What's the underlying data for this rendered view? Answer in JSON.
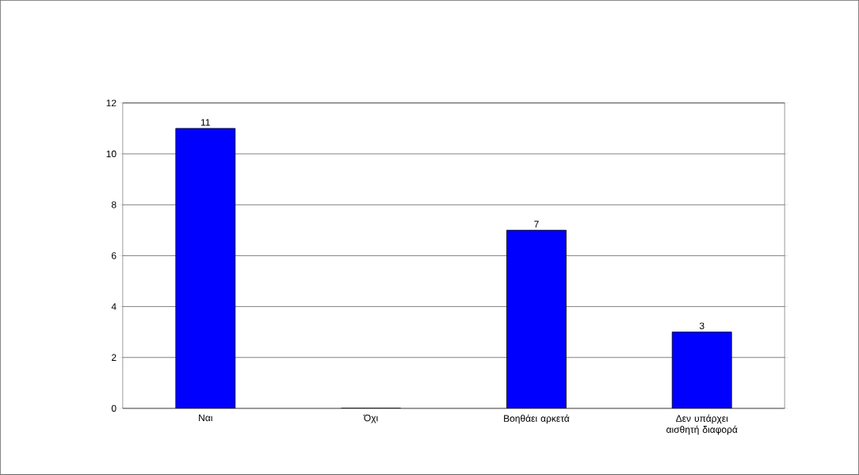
{
  "chart_data": {
    "type": "bar",
    "categories": [
      "Ναι",
      "Όχι",
      "Βοηθάει αρκετά",
      "Δεν υπάρχει αισθητή διαφορά"
    ],
    "values": [
      11,
      0,
      7,
      3
    ],
    "value_labels": [
      "11",
      null,
      "7",
      "3"
    ],
    "color": "#0000ff",
    "ylim": [
      0,
      12
    ],
    "yticks": [
      0,
      2,
      4,
      6,
      8,
      10,
      12
    ],
    "grid": "y"
  }
}
